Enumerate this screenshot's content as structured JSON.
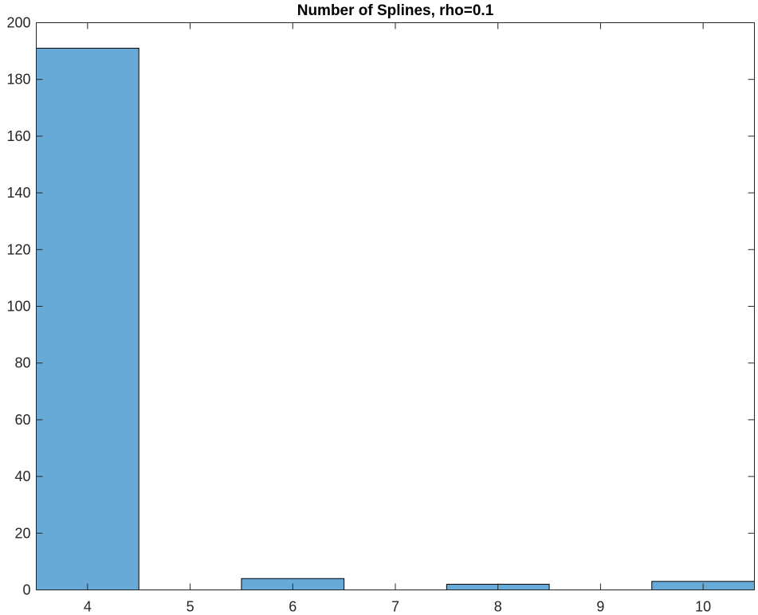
{
  "chart_data": {
    "type": "bar",
    "title": "Number of Splines, rho=0.1",
    "xlabel": "",
    "ylabel": "",
    "x": [
      4,
      6,
      8,
      10
    ],
    "values": [
      191,
      4,
      2,
      3
    ],
    "bar_width": 1.0,
    "xlim": [
      3.5,
      10.5
    ],
    "ylim": [
      0,
      200
    ],
    "xticks": [
      4,
      5,
      6,
      7,
      8,
      9,
      10
    ],
    "yticks": [
      0,
      20,
      40,
      60,
      80,
      100,
      120,
      140,
      160,
      180,
      200
    ],
    "grid": false,
    "legend": "none",
    "bar_color": "#67A9D7",
    "edge_color": "#000000"
  }
}
